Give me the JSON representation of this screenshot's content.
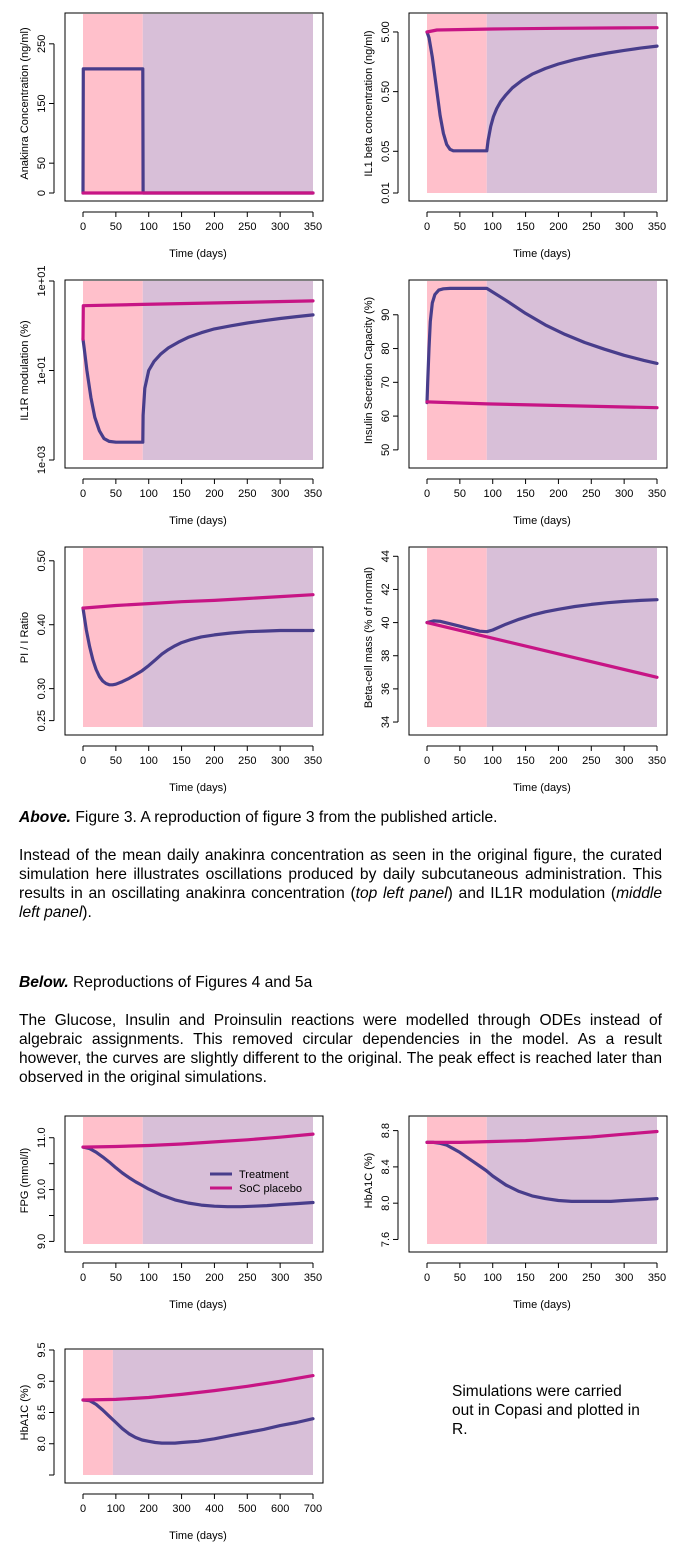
{
  "colors": {
    "phase1": "#ffc0cb",
    "phase2": "#d8bfd8",
    "treatment": "#483d8b",
    "placebo": "#c71585"
  },
  "chart_data": [
    {
      "id": "anakinra",
      "type": "line",
      "xlabel": "Time (days)",
      "ylabel": "Anakinra Concentration (ng/ml)",
      "xlim": [
        0,
        350
      ],
      "ylim": [
        0,
        300
      ],
      "xticks": [
        "0",
        "50",
        "100",
        "150",
        "200",
        "250",
        "300",
        "350"
      ],
      "yticks": [
        0,
        50,
        150,
        250
      ],
      "ytick_labels": [
        "0",
        "50",
        "150",
        "250"
      ],
      "phase_boundary_x": 91,
      "series": [
        {
          "role": "treatment",
          "x": [
            0,
            0.5,
            91,
            91.5,
            350
          ],
          "y": [
            0,
            208,
            208,
            0,
            0
          ]
        },
        {
          "role": "placebo",
          "x": [
            0,
            350
          ],
          "y": [
            0,
            0
          ]
        }
      ]
    },
    {
      "id": "il1beta",
      "type": "line",
      "log_y": true,
      "xlabel": "Time (days)",
      "ylabel": "IL1 beta concentration (ng/ml)",
      "xlim": [
        0,
        350
      ],
      "ylim": [
        0.01,
        10
      ],
      "xticks": [
        "0",
        "50",
        "100",
        "150",
        "200",
        "250",
        "300",
        "350"
      ],
      "yticks": [
        0.01,
        0.05,
        0.5,
        5
      ],
      "ytick_labels": [
        "0.01",
        "0.05",
        "0.50",
        "5.00"
      ],
      "phase_boundary_x": 91,
      "series": [
        {
          "role": "treatment",
          "x": [
            0,
            3,
            8,
            14,
            20,
            25,
            30,
            35,
            40,
            91,
            93,
            97,
            101,
            106,
            112,
            120,
            130,
            145,
            160,
            180,
            200,
            225,
            250,
            275,
            300,
            325,
            350
          ],
          "y": [
            5.0,
            4.0,
            1.9,
            0.62,
            0.2,
            0.1,
            0.065,
            0.054,
            0.051,
            0.051,
            0.076,
            0.13,
            0.19,
            0.26,
            0.34,
            0.44,
            0.58,
            0.78,
            0.98,
            1.22,
            1.45,
            1.72,
            1.98,
            2.22,
            2.45,
            2.68,
            2.9
          ]
        },
        {
          "role": "placebo",
          "x": [
            0,
            15,
            100,
            200,
            300,
            350
          ],
          "y": [
            5.0,
            5.4,
            5.6,
            5.75,
            5.85,
            5.9
          ]
        }
      ]
    },
    {
      "id": "il1r",
      "type": "line",
      "log_y": true,
      "xlabel": "Time (days)",
      "ylabel": "IL1R modulation (%)",
      "xlim": [
        0,
        350
      ],
      "ylim": [
        0.001,
        10
      ],
      "xticks": [
        "0",
        "50",
        "100",
        "150",
        "200",
        "250",
        "300",
        "350"
      ],
      "yticks": [
        0.001,
        0.1,
        10
      ],
      "ytick_labels": [
        "1e-03",
        "1e-01",
        "1e+01"
      ],
      "phase_boundary_x": 91,
      "series": [
        {
          "role": "treatment",
          "x": [
            0,
            2,
            6,
            12,
            18,
            25,
            32,
            40,
            50,
            60,
            91,
            91.5,
            94,
            100,
            108,
            118,
            130,
            145,
            160,
            180,
            200,
            225,
            250,
            275,
            300,
            325,
            350
          ],
          "y": [
            0.5,
            0.3,
            0.1,
            0.025,
            0.009,
            0.0045,
            0.003,
            0.0026,
            0.0025,
            0.0025,
            0.0025,
            0.01,
            0.04,
            0.1,
            0.16,
            0.23,
            0.32,
            0.43,
            0.55,
            0.7,
            0.85,
            1.0,
            1.15,
            1.3,
            1.45,
            1.6,
            1.75
          ]
        },
        {
          "role": "placebo",
          "x": [
            0,
            0.5,
            91,
            350
          ],
          "y": [
            0.5,
            2.8,
            3.0,
            3.6
          ]
        }
      ]
    },
    {
      "id": "insulin-secretion",
      "type": "line",
      "xlabel": "Time (days)",
      "ylabel": "Insulin Secretion Capacity (%)",
      "xlim": [
        0,
        350
      ],
      "ylim": [
        47,
        100
      ],
      "xticks": [
        "0",
        "50",
        "100",
        "150",
        "200",
        "250",
        "300",
        "350"
      ],
      "yticks": [
        50,
        60,
        70,
        80,
        90
      ],
      "ytick_labels": [
        "50",
        "60",
        "70",
        "80",
        "90"
      ],
      "phase_boundary_x": 91,
      "series": [
        {
          "role": "treatment",
          "x": [
            0,
            1,
            3,
            5,
            8,
            12,
            18,
            25,
            35,
            50,
            91,
            120,
            150,
            180,
            210,
            240,
            270,
            300,
            330,
            350
          ],
          "y": [
            64,
            70,
            80,
            88,
            93.5,
            96,
            97.3,
            97.7,
            97.8,
            97.8,
            97.8,
            94.3,
            90.4,
            87,
            84.2,
            81.8,
            79.8,
            78,
            76.5,
            75.6
          ]
        },
        {
          "role": "placebo",
          "x": [
            0,
            91,
            350
          ],
          "y": [
            64.2,
            63.6,
            62.5
          ]
        }
      ]
    },
    {
      "id": "pi-i-ratio",
      "type": "line",
      "xlabel": "Time (days)",
      "ylabel": "PI / I Ratio",
      "xlim": [
        0,
        350
      ],
      "ylim": [
        0.24,
        0.52
      ],
      "xticks": [
        "0",
        "50",
        "100",
        "150",
        "200",
        "250",
        "300",
        "350"
      ],
      "yticks": [
        0.25,
        0.3,
        0.4,
        0.5
      ],
      "ytick_labels": [
        "0.25",
        "0.30",
        "0.40",
        "0.50"
      ],
      "phase_boundary_x": 91,
      "series": [
        {
          "role": "treatment",
          "x": [
            0,
            5,
            10,
            15,
            20,
            25,
            30,
            35,
            40,
            45,
            50,
            60,
            70,
            80,
            90,
            100,
            110,
            120,
            130,
            140,
            150,
            165,
            180,
            200,
            225,
            250,
            275,
            300,
            325,
            350
          ],
          "y": [
            0.426,
            0.392,
            0.366,
            0.345,
            0.33,
            0.319,
            0.312,
            0.308,
            0.306,
            0.306,
            0.307,
            0.311,
            0.316,
            0.322,
            0.328,
            0.336,
            0.345,
            0.354,
            0.361,
            0.367,
            0.372,
            0.377,
            0.381,
            0.384,
            0.387,
            0.389,
            0.39,
            0.391,
            0.391,
            0.391
          ]
        },
        {
          "role": "placebo",
          "x": [
            0,
            50,
            100,
            150,
            200,
            250,
            300,
            350
          ],
          "y": [
            0.426,
            0.43,
            0.433,
            0.436,
            0.438,
            0.441,
            0.444,
            0.447
          ]
        }
      ]
    },
    {
      "id": "beta-cell-mass",
      "type": "line",
      "xlabel": "Time (days)",
      "ylabel": "Beta-cell mass (% of normal)",
      "xlim": [
        0,
        350
      ],
      "ylim": [
        33.7,
        44.5
      ],
      "xticks": [
        "0",
        "50",
        "100",
        "150",
        "200",
        "250",
        "300",
        "350"
      ],
      "yticks": [
        34,
        36,
        38,
        40,
        42,
        44
      ],
      "ytick_labels": [
        "34",
        "36",
        "38",
        "40",
        "42",
        "44"
      ],
      "phase_boundary_x": 91,
      "series": [
        {
          "role": "treatment",
          "x": [
            0,
            10,
            20,
            30,
            40,
            50,
            60,
            70,
            80,
            91,
            100,
            120,
            140,
            160,
            180,
            200,
            225,
            250,
            275,
            300,
            325,
            350
          ],
          "y": [
            40.0,
            40.1,
            40.08,
            39.98,
            39.88,
            39.78,
            39.68,
            39.58,
            39.48,
            39.45,
            39.55,
            39.9,
            40.2,
            40.45,
            40.65,
            40.8,
            40.97,
            41.1,
            41.2,
            41.28,
            41.34,
            41.38
          ]
        },
        {
          "role": "placebo",
          "x": [
            0,
            350
          ],
          "y": [
            40.0,
            36.7
          ]
        }
      ]
    },
    {
      "id": "fpg",
      "type": "line",
      "xlabel": "Time (days)",
      "ylabel": "FPG (mmol/l)",
      "xlim": [
        0,
        350
      ],
      "ylim": [
        8.95,
        11.4
      ],
      "xticks": [
        "0",
        "50",
        "100",
        "150",
        "200",
        "250",
        "300",
        "350"
      ],
      "yticks": [
        9.0,
        9.5,
        10.0,
        10.5,
        11.0
      ],
      "ytick_labels": [
        "9.0",
        "",
        "10.0",
        "",
        "11.0"
      ],
      "phase_boundary_x": 91,
      "legend": {
        "position": "right",
        "entries": [
          "Treatment",
          "SoC placebo"
        ]
      },
      "series": [
        {
          "role": "treatment",
          "name": "Treatment",
          "x": [
            0,
            10,
            20,
            30,
            40,
            50,
            60,
            70,
            80,
            90,
            100,
            120,
            140,
            160,
            180,
            200,
            220,
            240,
            260,
            280,
            300,
            325,
            350
          ],
          "y": [
            10.82,
            10.79,
            10.72,
            10.63,
            10.53,
            10.42,
            10.32,
            10.23,
            10.15,
            10.08,
            10.01,
            9.89,
            9.8,
            9.74,
            9.7,
            9.68,
            9.67,
            9.67,
            9.68,
            9.69,
            9.71,
            9.73,
            9.75
          ]
        },
        {
          "role": "placebo",
          "name": "SoC placebo",
          "x": [
            0,
            50,
            100,
            150,
            200,
            250,
            300,
            350
          ],
          "y": [
            10.82,
            10.83,
            10.85,
            10.88,
            10.92,
            10.96,
            11.01,
            11.07
          ]
        }
      ]
    },
    {
      "id": "hba1c-350",
      "type": "line",
      "xlabel": "Time (days)",
      "ylabel": "HbA1C (%)",
      "xlim": [
        0,
        350
      ],
      "ylim": [
        7.55,
        8.95
      ],
      "xticks": [
        "0",
        "50",
        "100",
        "150",
        "200",
        "250",
        "300",
        "350"
      ],
      "yticks": [
        7.6,
        8.0,
        8.4,
        8.8
      ],
      "ytick_labels": [
        "7.6",
        "8.0",
        "8.4",
        "8.8"
      ],
      "phase_boundary_x": 91,
      "series": [
        {
          "role": "treatment",
          "x": [
            0,
            10,
            20,
            30,
            40,
            50,
            60,
            70,
            80,
            90,
            100,
            120,
            140,
            160,
            180,
            200,
            220,
            240,
            260,
            280,
            300,
            325,
            350
          ],
          "y": [
            8.67,
            8.67,
            8.66,
            8.64,
            8.6,
            8.56,
            8.51,
            8.46,
            8.41,
            8.36,
            8.3,
            8.2,
            8.13,
            8.08,
            8.05,
            8.03,
            8.02,
            8.02,
            8.02,
            8.02,
            8.03,
            8.04,
            8.05
          ]
        },
        {
          "role": "placebo",
          "x": [
            0,
            50,
            100,
            150,
            200,
            250,
            300,
            350
          ],
          "y": [
            8.67,
            8.67,
            8.68,
            8.69,
            8.71,
            8.73,
            8.76,
            8.79
          ]
        }
      ]
    },
    {
      "id": "hba1c-700",
      "type": "line",
      "xlabel": "Time (days)",
      "ylabel": "HbA1C (%)",
      "xlim": [
        0,
        700
      ],
      "ylim": [
        7.5,
        9.5
      ],
      "xticks": [
        "0",
        "100",
        "200",
        "300",
        "400",
        "500",
        "600",
        "700"
      ],
      "yticks": [
        7.5,
        8.0,
        8.5,
        9.0,
        9.5
      ],
      "ytick_labels": [
        "",
        "8.0",
        "8.5",
        "9.0",
        "9.5"
      ],
      "phase_boundary_x": 91,
      "series": [
        {
          "role": "treatment",
          "x": [
            0,
            20,
            40,
            60,
            80,
            100,
            120,
            140,
            160,
            180,
            200,
            220,
            240,
            260,
            280,
            300,
            325,
            350,
            400,
            450,
            500,
            550,
            600,
            650,
            700
          ],
          "y": [
            8.7,
            8.69,
            8.63,
            8.54,
            8.44,
            8.34,
            8.24,
            8.16,
            8.1,
            8.06,
            8.04,
            8.02,
            8.01,
            8.01,
            8.01,
            8.02,
            8.03,
            8.04,
            8.08,
            8.13,
            8.18,
            8.23,
            8.29,
            8.34,
            8.4
          ]
        },
        {
          "role": "placebo",
          "x": [
            0,
            100,
            200,
            300,
            400,
            500,
            600,
            700
          ],
          "y": [
            8.7,
            8.71,
            8.74,
            8.79,
            8.85,
            8.92,
            9.0,
            9.09
          ]
        }
      ]
    }
  ],
  "text": {
    "above_label": "Above.",
    "above_caption": " Figure 3. A reproduction of figure 3 from the published article.",
    "above_para_1": "Instead of the mean daily anakinra concentration as seen in the original figure, the curated simulation here illustrates oscillations produced by daily subcutaneous administration. This results in an oscillating anakinra concentration (",
    "above_para_em1": "top left panel",
    "above_para_2": ") and IL1R modulation (",
    "above_para_em2": "middle left panel",
    "above_para_3": ").",
    "below_label": "Below.",
    "below_caption": " Reproductions of Figures 4 and 5a",
    "below_para": "The Glucose, Insulin and Proinsulin reactions were modelled through ODEs instead of algebraic assignments. This removed circular dependencies in the model. As a result however, the curves are slightly different to the original. The peak effect is reached later than observed in the original simulations.",
    "note": "Simulations were carried out in Copasi and plotted in R."
  }
}
